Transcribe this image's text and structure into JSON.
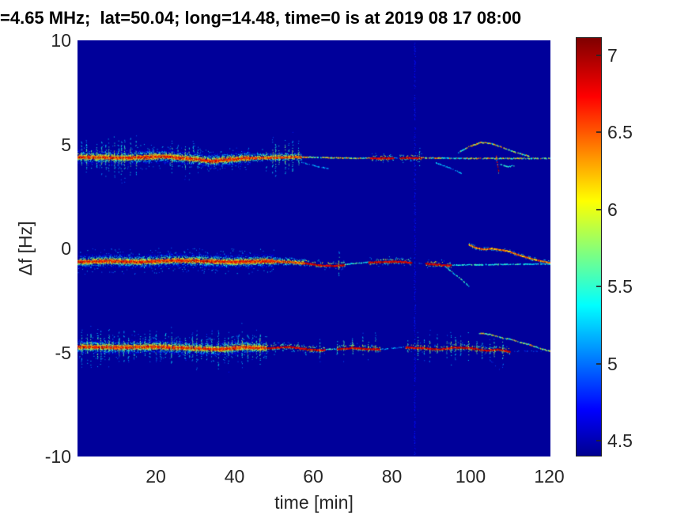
{
  "chart_data": {
    "type": "spectrogram",
    "title": "=4.65 MHz;  lat=50.04; long=14.48, time=0 is at 2019 08 17 08:00",
    "xlabel": "time [min]",
    "ylabel": "Δf [Hz]",
    "x_range": [
      0,
      120.4
    ],
    "y_range": [
      -10,
      10
    ],
    "xticks": [
      20,
      40,
      60,
      80,
      100,
      120
    ],
    "yticks": [
      10,
      5,
      0,
      -5,
      -10
    ],
    "grid": false,
    "colorbar": {
      "ticks": [
        "7",
        "6.5",
        "6",
        "5.5",
        "5",
        "4.5"
      ],
      "tick_values": [
        7,
        6.5,
        6,
        5.5,
        5,
        4.5
      ],
      "clim": [
        4.5,
        7
      ]
    },
    "clim_render": [
      4.4,
      7.1
    ],
    "background_level": 4.43,
    "palette": {
      "background": "#00008F",
      "axis_text": "#262626",
      "title_text": "#000000",
      "jet_stops": [
        {
          "color": "#00008F",
          "pos": 0
        },
        {
          "color": "#0000FF",
          "pos": 11
        },
        {
          "color": "#00FFFF",
          "pos": 36
        },
        {
          "color": "#FFFF00",
          "pos": 61
        },
        {
          "color": "#FF0000",
          "pos": 86
        },
        {
          "color": "#7F0000",
          "pos": 100
        }
      ]
    },
    "vertical_interference": [
      {
        "t": 85.8,
        "strength": 0.5
      }
    ],
    "traces": [
      {
        "name": "upper-sideband +4.4 Hz",
        "centerline": [
          [
            0,
            4.42
          ],
          [
            12,
            4.38
          ],
          [
            22,
            4.45
          ],
          [
            30,
            4.32
          ],
          [
            34,
            4.22
          ],
          [
            38,
            4.3
          ],
          [
            44,
            4.38
          ],
          [
            50,
            4.4
          ],
          [
            56,
            4.42
          ],
          [
            70,
            4.36
          ],
          [
            85,
            4.38
          ],
          [
            100,
            4.35
          ],
          [
            121,
            4.35
          ]
        ],
        "segments": [
          {
            "t0": 0,
            "t1": 44,
            "type": "band3"
          },
          {
            "t0": 44,
            "t1": 57,
            "type": "band2"
          },
          {
            "t0": 57,
            "t1": 74.5,
            "type": "dashMix"
          },
          {
            "t0": 74.5,
            "t1": 80.5,
            "type": "lineR"
          },
          {
            "t0": 80.5,
            "t1": 82,
            "type": "faint"
          },
          {
            "t0": 82,
            "t1": 87.5,
            "type": "lineR"
          },
          {
            "t0": 87.5,
            "t1": 121,
            "type": "dashMix"
          }
        ],
        "spike_bursts": [
          {
            "t0": 1,
            "t1": 16,
            "period": 1.1,
            "amp": 1.5,
            "strength": 0.9
          },
          {
            "t0": 16,
            "t1": 24,
            "period": 1.6,
            "amp": 0.8,
            "strength": 0.7
          },
          {
            "t0": 24,
            "t1": 31,
            "period": 1.4,
            "amp": 1.2,
            "strength": 0.8
          },
          {
            "t0": 31,
            "t1": 48,
            "period": 2.0,
            "amp": 0.7,
            "strength": 0.6
          },
          {
            "t0": 48,
            "t1": 57,
            "period": 1.2,
            "amp": 1.4,
            "strength": 0.85
          },
          {
            "t0": 87,
            "t1": 88,
            "period": 2,
            "amp": 1.3,
            "strength": 0.85
          }
        ],
        "extras": [
          {
            "style": "dashMix",
            "points": [
              [
                96.5,
                4.6
              ],
              [
                99.5,
                4.9
              ],
              [
                102.5,
                5.12
              ],
              [
                105.5,
                5.05
              ],
              [
                108,
                4.88
              ],
              [
                110.5,
                4.7
              ],
              [
                113,
                4.55
              ],
              [
                115,
                4.45
              ]
            ]
          },
          {
            "style": "faint",
            "points": [
              [
                91,
                4.15
              ],
              [
                94.5,
                3.9
              ],
              [
                98,
                3.6
              ]
            ]
          },
          {
            "style": "faint",
            "points": [
              [
                57,
                4.15
              ],
              [
                60.5,
                3.98
              ],
              [
                64,
                3.85
              ]
            ]
          },
          {
            "style": "lineR",
            "points": [
              [
                106.5,
                4.45
              ],
              [
                106.8,
                4.05
              ],
              [
                107.1,
                3.75
              ]
            ]
          },
          {
            "style": "dashC",
            "points": [
              [
                107.5,
                4.05
              ],
              [
                109.5,
                3.95
              ],
              [
                111,
                4.0
              ]
            ]
          }
        ]
      },
      {
        "name": "carrier -0.6 Hz",
        "centerline": [
          [
            0,
            -0.62
          ],
          [
            8,
            -0.58
          ],
          [
            16,
            -0.62
          ],
          [
            24,
            -0.55
          ],
          [
            32,
            -0.58
          ],
          [
            40,
            -0.62
          ],
          [
            48,
            -0.58
          ],
          [
            54,
            -0.62
          ],
          [
            58,
            -0.68
          ],
          [
            62,
            -0.78
          ],
          [
            66,
            -0.8
          ],
          [
            70,
            -0.7
          ],
          [
            76,
            -0.62
          ],
          [
            82,
            -0.6
          ],
          [
            86,
            -0.68
          ],
          [
            90,
            -0.72
          ],
          [
            94,
            -0.78
          ],
          [
            121,
            -0.72
          ]
        ],
        "segments": [
          {
            "t0": 0,
            "t1": 50,
            "type": "band3"
          },
          {
            "t0": 50,
            "t1": 58,
            "type": "band2"
          },
          {
            "t0": 58,
            "t1": 68,
            "type": "lineR"
          },
          {
            "t0": 68,
            "t1": 74,
            "type": "dashC"
          },
          {
            "t0": 74,
            "t1": 85,
            "type": "lineR"
          },
          {
            "t0": 85,
            "t1": 88.5,
            "type": "gap"
          },
          {
            "t0": 88.5,
            "t1": 95,
            "type": "lineR"
          },
          {
            "t0": 95,
            "t1": 121,
            "type": "dashC"
          }
        ],
        "spike_bursts": [
          {
            "t0": 2,
            "t1": 40,
            "period": 2.2,
            "amp": 0.6,
            "strength": 0.6
          },
          {
            "t0": 66.5,
            "t1": 68,
            "period": 3,
            "amp": 1.05,
            "strength": 0.9
          }
        ],
        "extras": [
          {
            "style": "dashC",
            "points": [
              [
                93.5,
                -0.85
              ],
              [
                96.5,
                -1.3
              ],
              [
                99.5,
                -1.78
              ]
            ]
          },
          {
            "style": "warmLine",
            "points": [
              [
                99.5,
                0.2
              ],
              [
                101.5,
                0.05
              ],
              [
                103.5,
                -0.02
              ],
              [
                105.5,
                0.02
              ],
              [
                107.5,
                -0.05
              ],
              [
                109.5,
                -0.1
              ],
              [
                112,
                -0.28
              ],
              [
                115,
                -0.45
              ],
              [
                118,
                -0.58
              ],
              [
                121,
                -0.7
              ]
            ]
          }
        ]
      },
      {
        "name": "lower-sideband -4.75 Hz",
        "centerline": [
          [
            0,
            -4.7
          ],
          [
            10,
            -4.73
          ],
          [
            20,
            -4.7
          ],
          [
            28,
            -4.76
          ],
          [
            36,
            -4.82
          ],
          [
            42,
            -4.72
          ],
          [
            48,
            -4.76
          ],
          [
            54,
            -4.7
          ],
          [
            58,
            -4.8
          ],
          [
            62,
            -4.86
          ],
          [
            66,
            -4.8
          ],
          [
            70,
            -4.74
          ],
          [
            74,
            -4.8
          ],
          [
            78,
            -4.82
          ],
          [
            83,
            -4.72
          ],
          [
            88,
            -4.76
          ],
          [
            92,
            -4.82
          ],
          [
            96,
            -4.72
          ],
          [
            100,
            -4.76
          ],
          [
            104,
            -4.88
          ],
          [
            107,
            -4.82
          ],
          [
            110,
            -4.92
          ],
          [
            121,
            -4.92
          ]
        ],
        "segments": [
          {
            "t0": 0,
            "t1": 48,
            "type": "band3"
          },
          {
            "t0": 48,
            "t1": 63,
            "type": "lineR"
          },
          {
            "t0": 63,
            "t1": 66,
            "type": "dashC"
          },
          {
            "t0": 66,
            "t1": 77,
            "type": "lineR"
          },
          {
            "t0": 77,
            "t1": 83.5,
            "type": "faint"
          },
          {
            "t0": 83.5,
            "t1": 95,
            "type": "lineR"
          },
          {
            "t0": 95,
            "t1": 110,
            "type": "lineR"
          },
          {
            "t0": 110,
            "t1": 121,
            "type": "gap"
          }
        ],
        "spike_bursts": [
          {
            "t0": 1,
            "t1": 48,
            "period": 1.25,
            "amp": 1.3,
            "strength": 0.95
          },
          {
            "t0": 50,
            "t1": 62,
            "period": 2.8,
            "amp": 0.7,
            "strength": 0.7
          },
          {
            "t0": 66,
            "t1": 77,
            "period": 2.0,
            "amp": 0.95,
            "strength": 0.85
          },
          {
            "t0": 84,
            "t1": 95,
            "period": 2.0,
            "amp": 1.05,
            "strength": 0.85
          },
          {
            "t0": 95,
            "t1": 110,
            "period": 1.8,
            "amp": 1.15,
            "strength": 0.9
          }
        ],
        "extras": [
          {
            "style": "dashMix",
            "points": [
              [
                102,
                -4.05
              ],
              [
                104.5,
                -4.1
              ],
              [
                106.5,
                -4.18
              ],
              [
                108.5,
                -4.3
              ],
              [
                110.5,
                -4.35
              ],
              [
                112.5,
                -4.48
              ],
              [
                114.5,
                -4.58
              ],
              [
                116.5,
                -4.7
              ],
              [
                118.5,
                -4.83
              ],
              [
                121,
                -4.95
              ]
            ]
          },
          {
            "style": "gap",
            "points": [
              [
                103.5,
                -5.1
              ],
              [
                105.5,
                -5.45
              ],
              [
                107.5,
                -5.85
              ]
            ]
          }
        ]
      }
    ]
  }
}
